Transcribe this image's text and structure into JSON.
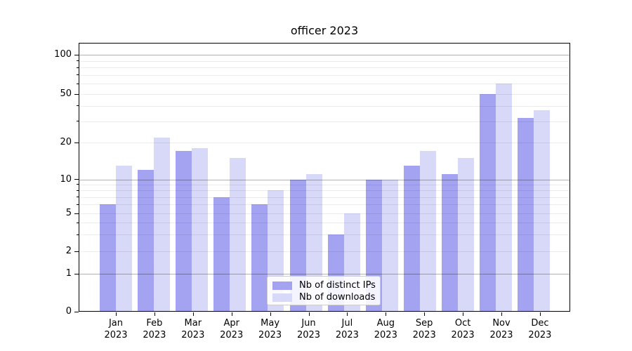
{
  "title": "officer 2023",
  "chart_data": {
    "type": "bar",
    "title": "officer 2023",
    "categories": [
      "Jan 2023",
      "Feb 2023",
      "Mar 2023",
      "Apr 2023",
      "May 2023",
      "Jun 2023",
      "Jul 2023",
      "Aug 2023",
      "Sep 2023",
      "Oct 2023",
      "Nov 2023",
      "Dec 2023"
    ],
    "series": [
      {
        "name": "Nb of distinct IPs",
        "key": "distinct-ips",
        "color": "#a3a3f2",
        "values": [
          6,
          12,
          17,
          7,
          6,
          10,
          3,
          10,
          13,
          11,
          50,
          32
        ]
      },
      {
        "name": "Nb of downloads",
        "key": "downloads",
        "color": "#d8d8f8",
        "values": [
          13,
          22,
          18,
          15,
          8,
          11,
          5,
          10,
          17,
          15,
          60,
          37
        ]
      }
    ],
    "xlabel": "",
    "ylabel": "",
    "y_axis": {
      "scale": "log-like (linear segment between 0 and 1)",
      "tick_values": [
        100,
        50,
        20,
        10,
        5,
        2,
        1,
        0
      ],
      "tick_labels": [
        "100",
        "50",
        "20",
        "10",
        "5",
        "2",
        "1",
        "0"
      ],
      "major_grid_values": [
        1,
        10,
        100
      ],
      "minor_grid_values": [
        2,
        3,
        4,
        5,
        6,
        7,
        8,
        9,
        20,
        30,
        40,
        50,
        60,
        70,
        80,
        90
      ],
      "range_top": 100,
      "range_bottom": 0
    },
    "grid": true,
    "legend_position": "lower center"
  }
}
